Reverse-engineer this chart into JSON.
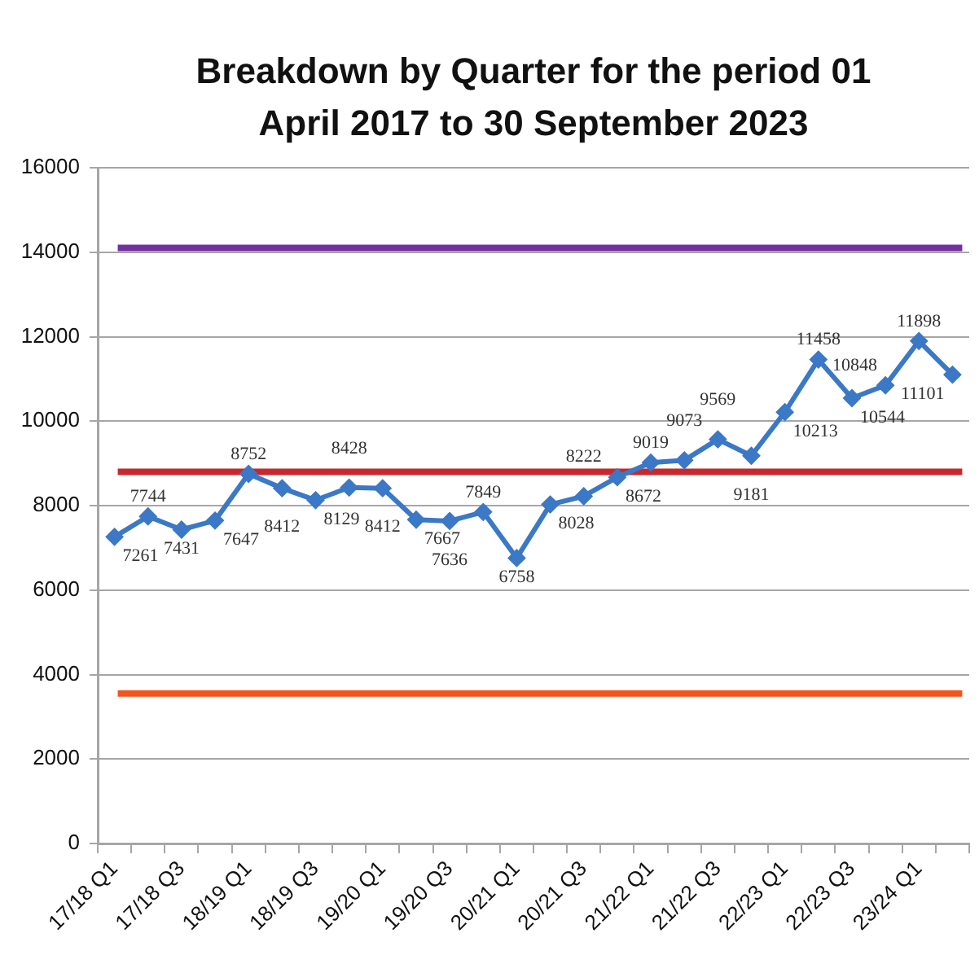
{
  "chart_data": {
    "type": "line",
    "title": "Breakdown by Quarter for the period 01 April 2017 to 30 September 2023",
    "categories": [
      "17/18 Q1",
      null,
      "17/18 Q3",
      null,
      "18/19 Q1",
      null,
      "18/19 Q3",
      null,
      "19/20 Q1",
      null,
      "19/20 Q3",
      null,
      "20/21 Q1",
      null,
      "20/21 Q3",
      null,
      "21/22 Q1",
      null,
      "21/22 Q3",
      null,
      "22/23 Q1",
      null,
      "22/23 Q3",
      null,
      "23/24 Q1",
      null
    ],
    "series": [
      {
        "color": "#3b78c6",
        "values": [
          7261,
          7744,
          7431,
          7647,
          8752,
          8412,
          8129,
          8428,
          8412,
          7667,
          7636,
          7849,
          6758,
          8028,
          8222,
          8672,
          9019,
          9073,
          9569,
          9181,
          10213,
          11458,
          10544,
          10848,
          11898,
          11101
        ]
      }
    ],
    "marker": "diamond",
    "data_labels": true,
    "ylim": [
      0,
      16000
    ],
    "yticks": [
      0,
      2000,
      4000,
      6000,
      8000,
      10000,
      12000,
      14000,
      16000
    ],
    "grid": "y",
    "ref_lines": [
      {
        "axis": "y",
        "value": 14100,
        "color": "#7030a0"
      },
      {
        "axis": "y",
        "value": 8800,
        "color": "#c8282d"
      },
      {
        "axis": "y",
        "value": 3550,
        "color": "#f0561e"
      }
    ]
  }
}
